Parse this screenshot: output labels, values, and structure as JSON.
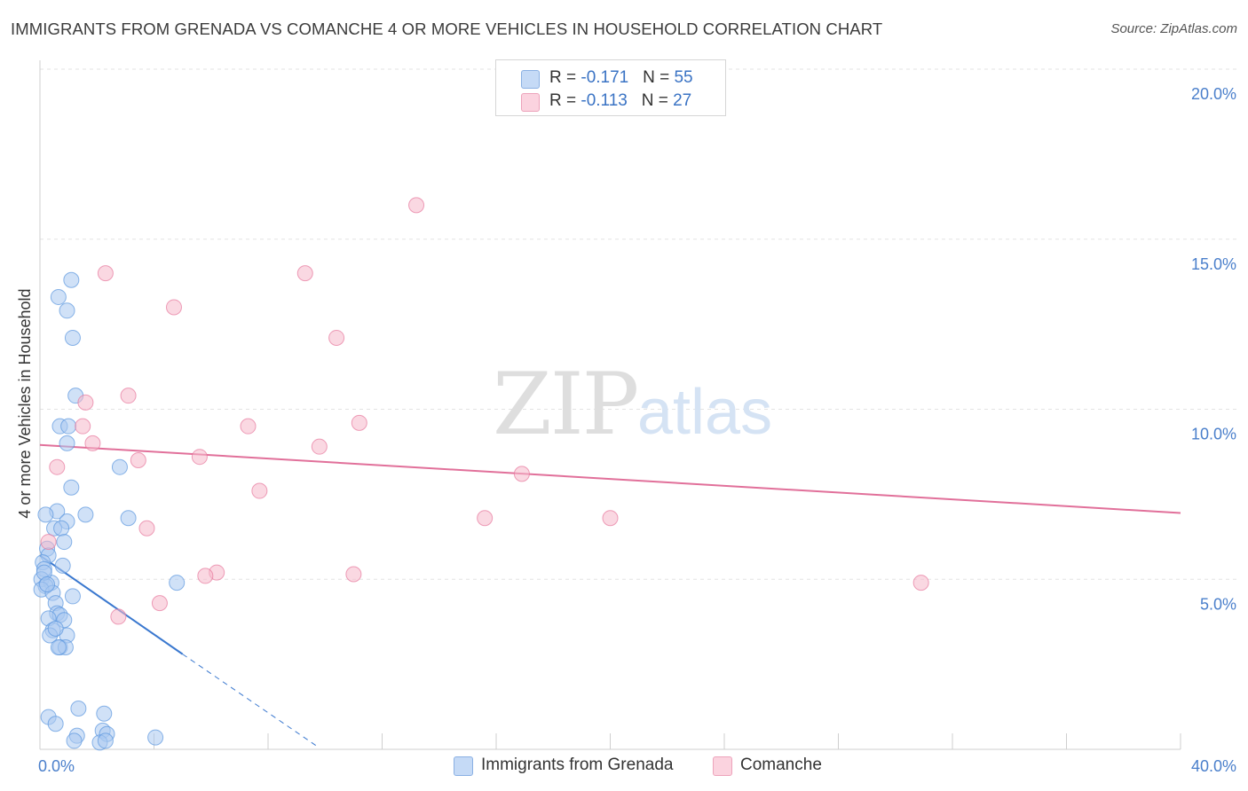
{
  "title": "IMMIGRANTS FROM GRENADA VS COMANCHE 4 OR MORE VEHICLES IN HOUSEHOLD CORRELATION CHART",
  "source": "Source: ZipAtlas.com",
  "watermark": {
    "zip": "ZIP",
    "atlas": "atlas"
  },
  "legend_top": [
    {
      "r_label": "R = ",
      "r_value": "-0.171",
      "n_label": "N = ",
      "n_value": "55",
      "color": "#a9c8f0"
    },
    {
      "r_label": "R = ",
      "r_value": "-0.113",
      "n_label": "N = ",
      "n_value": "27",
      "color": "#f6b8cb"
    }
  ],
  "legend_bottom": [
    {
      "label": "Immigrants from Grenada",
      "color": "#a9c8f0"
    },
    {
      "label": "Comanche",
      "color": "#f6b8cb"
    }
  ],
  "colors": {
    "blue": "#5a95de",
    "blue_fill": "#a9c8f0",
    "pink": "#e7779c",
    "pink_fill": "#f6b8cb",
    "blue_line": "#3a78cf",
    "pink_line": "#e1709a"
  },
  "chart_data": {
    "type": "scatter",
    "xlabel": "",
    "ylabel": "4 or more Vehicles in Household",
    "xlim": [
      0,
      40
    ],
    "ylim": [
      0,
      20
    ],
    "x_ticks": [
      {
        "value": 0,
        "label": "0.0%"
      },
      {
        "value": 40,
        "label": "40.0%"
      }
    ],
    "y_ticks": [
      {
        "value": 5,
        "label": "5.0%"
      },
      {
        "value": 10,
        "label": "10.0%"
      },
      {
        "value": 15,
        "label": "15.0%"
      },
      {
        "value": 20,
        "label": "20.0%"
      }
    ],
    "grid": true,
    "legend_position": "top-center",
    "series": [
      {
        "name": "Immigrants from Grenada",
        "color": "#5a95de",
        "points": [
          [
            1.1,
            13.8
          ],
          [
            0.65,
            13.3
          ],
          [
            0.95,
            12.9
          ],
          [
            1.15,
            12.1
          ],
          [
            1.25,
            10.4
          ],
          [
            0.7,
            9.5
          ],
          [
            1.0,
            9.5
          ],
          [
            0.95,
            9.0
          ],
          [
            2.8,
            8.3
          ],
          [
            1.1,
            7.7
          ],
          [
            0.6,
            7.0
          ],
          [
            0.2,
            6.9
          ],
          [
            1.6,
            6.9
          ],
          [
            3.1,
            6.8
          ],
          [
            0.95,
            6.7
          ],
          [
            0.5,
            6.5
          ],
          [
            0.75,
            6.5
          ],
          [
            0.85,
            6.1
          ],
          [
            0.25,
            5.9
          ],
          [
            0.3,
            5.7
          ],
          [
            0.1,
            5.5
          ],
          [
            0.15,
            5.3
          ],
          [
            0.8,
            5.4
          ],
          [
            0.05,
            5.0
          ],
          [
            0.4,
            4.9
          ],
          [
            0.2,
            4.8
          ],
          [
            0.05,
            4.7
          ],
          [
            0.45,
            4.6
          ],
          [
            1.15,
            4.5
          ],
          [
            0.55,
            4.3
          ],
          [
            0.6,
            4.0
          ],
          [
            0.7,
            3.95
          ],
          [
            0.3,
            3.85
          ],
          [
            0.85,
            3.8
          ],
          [
            0.45,
            3.5
          ],
          [
            0.35,
            3.35
          ],
          [
            0.95,
            3.35
          ],
          [
            0.7,
            3.0
          ],
          [
            0.9,
            3.0
          ],
          [
            4.8,
            4.9
          ],
          [
            0.3,
            0.95
          ],
          [
            1.35,
            1.2
          ],
          [
            2.25,
            1.05
          ],
          [
            0.55,
            0.75
          ],
          [
            1.3,
            0.4
          ],
          [
            2.2,
            0.55
          ],
          [
            2.35,
            0.45
          ],
          [
            4.05,
            0.35
          ],
          [
            2.1,
            0.2
          ],
          [
            2.3,
            0.25
          ],
          [
            0.15,
            5.2
          ],
          [
            0.25,
            4.85
          ],
          [
            0.55,
            3.55
          ],
          [
            0.65,
            3.0
          ],
          [
            1.2,
            0.25
          ]
        ]
      },
      {
        "name": "Comanche",
        "color": "#e7779c",
        "points": [
          [
            13.2,
            16.0
          ],
          [
            2.3,
            14.0
          ],
          [
            9.3,
            14.0
          ],
          [
            4.7,
            13.0
          ],
          [
            10.4,
            12.1
          ],
          [
            3.1,
            10.4
          ],
          [
            1.6,
            10.2
          ],
          [
            1.5,
            9.5
          ],
          [
            7.3,
            9.5
          ],
          [
            11.2,
            9.6
          ],
          [
            1.85,
            9.0
          ],
          [
            9.8,
            8.9
          ],
          [
            5.6,
            8.6
          ],
          [
            3.45,
            8.5
          ],
          [
            0.6,
            8.3
          ],
          [
            16.9,
            8.1
          ],
          [
            7.7,
            7.6
          ],
          [
            15.6,
            6.8
          ],
          [
            20.0,
            6.8
          ],
          [
            3.75,
            6.5
          ],
          [
            0.3,
            6.1
          ],
          [
            6.2,
            5.2
          ],
          [
            5.8,
            5.1
          ],
          [
            11.0,
            5.15
          ],
          [
            30.9,
            4.9
          ],
          [
            4.2,
            4.3
          ],
          [
            2.75,
            3.9
          ]
        ]
      }
    ],
    "trendlines": [
      {
        "series": "Immigrants from Grenada",
        "x0": 0,
        "y0": 5.7,
        "x1": 5.0,
        "y1": 2.8,
        "dash_to_x": 9.7,
        "dash_to_y": 0.1
      },
      {
        "series": "Comanche",
        "x0": 0,
        "y0": 8.95,
        "x1": 40,
        "y1": 6.95
      }
    ]
  }
}
